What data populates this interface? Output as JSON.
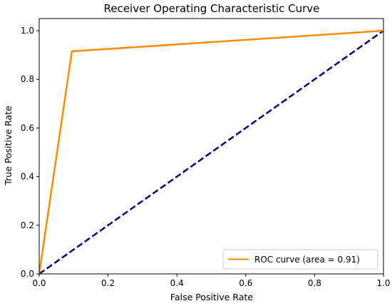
{
  "chart_data": {
    "type": "line",
    "title": "Receiver Operating Characteristic Curve",
    "xlabel": "False Positive Rate",
    "ylabel": "True Positive Rate",
    "xlim": [
      0.0,
      1.0
    ],
    "ylim": [
      0.0,
      1.05
    ],
    "xticks": [
      0.0,
      0.2,
      0.4,
      0.6,
      0.8,
      1.0
    ],
    "yticks": [
      0.0,
      0.2,
      0.4,
      0.6,
      0.8,
      1.0
    ],
    "xtick_labels": [
      "0.0",
      "0.2",
      "0.4",
      "0.6",
      "0.8",
      "1.0"
    ],
    "ytick_labels": [
      "0.0",
      "0.2",
      "0.4",
      "0.6",
      "0.8",
      "1.0"
    ],
    "grid": false,
    "legend_position": "lower-right",
    "series": [
      {
        "name": "ROC curve (area = 0.91)",
        "x": [
          0.0,
          0.095,
          1.0
        ],
        "y": [
          0.0,
          0.915,
          1.0
        ],
        "color": "#ff8c00",
        "style": "solid"
      },
      {
        "x": [
          0.0,
          1.0
        ],
        "y": [
          0.0,
          1.0
        ],
        "color": "#000080",
        "style": "dashed"
      }
    ]
  }
}
